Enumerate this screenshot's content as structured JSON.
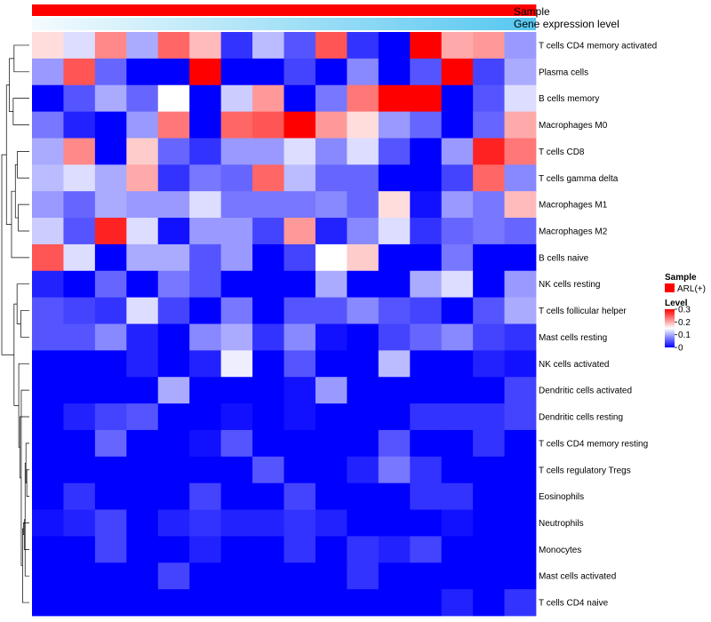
{
  "chart_data": {
    "type": "heatmap",
    "title": "",
    "row_labels": [
      "T cells CD4 memory activated",
      "Plasma cells",
      "B cells memory",
      "Macrophages M0",
      "T cells CD8",
      "T cells gamma delta",
      "Macrophages M1",
      "Macrophages M2",
      "B cells naive",
      "NK cells resting",
      "T cells follicular helper",
      "Mast cells resting",
      "NK cells activated",
      "Dendritic cells activated",
      "Dendritic cells resting",
      "T cells CD4 memory resting",
      "T cells regulatory  Tregs",
      "Eosinophils",
      "Neutrophils",
      "Monocytes",
      "Mast cells activated",
      "T cells CD4 naive"
    ],
    "n_columns": 16,
    "values": [
      [
        0.17,
        0.13,
        0.22,
        0.1,
        0.24,
        0.19,
        0.03,
        0.11,
        0.05,
        0.25,
        0.03,
        0.0,
        0.31,
        0.2,
        0.21,
        0.09
      ],
      [
        0.09,
        0.25,
        0.06,
        0.0,
        0.0,
        0.31,
        0.0,
        0.0,
        0.04,
        0.0,
        0.08,
        0.0,
        0.05,
        0.31,
        0.04,
        0.1
      ],
      [
        0.0,
        0.05,
        0.1,
        0.06,
        0.15,
        0.0,
        0.12,
        0.21,
        0.0,
        0.07,
        0.23,
        0.3,
        0.3,
        0.0,
        0.05,
        0.13
      ],
      [
        0.07,
        0.02,
        0.0,
        0.09,
        0.23,
        0.0,
        0.24,
        0.25,
        0.31,
        0.21,
        0.17,
        0.09,
        0.06,
        0.0,
        0.06,
        0.2
      ],
      [
        0.1,
        0.22,
        0.0,
        0.18,
        0.06,
        0.03,
        0.09,
        0.09,
        0.13,
        0.08,
        0.13,
        0.05,
        0.0,
        0.09,
        0.28,
        0.23
      ],
      [
        0.11,
        0.13,
        0.1,
        0.2,
        0.03,
        0.07,
        0.06,
        0.24,
        0.11,
        0.06,
        0.06,
        0.0,
        0.0,
        0.04,
        0.24,
        0.08
      ],
      [
        0.09,
        0.06,
        0.1,
        0.09,
        0.09,
        0.13,
        0.07,
        0.07,
        0.07,
        0.08,
        0.06,
        0.17,
        0.01,
        0.09,
        0.07,
        0.19
      ],
      [
        0.12,
        0.05,
        0.28,
        0.13,
        0.01,
        0.09,
        0.09,
        0.04,
        0.21,
        0.02,
        0.08,
        0.13,
        0.03,
        0.06,
        0.07,
        0.06
      ],
      [
        0.25,
        0.13,
        0.0,
        0.1,
        0.1,
        0.05,
        0.09,
        0.0,
        0.04,
        0.15,
        0.18,
        0.0,
        0.0,
        0.07,
        0.0,
        0.0
      ],
      [
        0.02,
        0.0,
        0.06,
        0.0,
        0.07,
        0.05,
        0.0,
        0.0,
        0.0,
        0.1,
        0.0,
        0.0,
        0.1,
        0.13,
        0.0,
        0.09
      ],
      [
        0.05,
        0.04,
        0.03,
        0.13,
        0.04,
        0.0,
        0.07,
        0.0,
        0.05,
        0.05,
        0.08,
        0.05,
        0.04,
        0.0,
        0.05,
        0.1
      ],
      [
        0.05,
        0.05,
        0.08,
        0.02,
        0.0,
        0.08,
        0.1,
        0.03,
        0.08,
        0.01,
        0.0,
        0.04,
        0.06,
        0.08,
        0.04,
        0.03
      ],
      [
        0.0,
        0.0,
        0.0,
        0.02,
        0.0,
        0.02,
        0.14,
        0.0,
        0.05,
        0.0,
        0.0,
        0.11,
        0.0,
        0.0,
        0.02,
        0.01
      ],
      [
        0.0,
        0.0,
        0.0,
        0.0,
        0.1,
        0.0,
        0.0,
        0.0,
        0.01,
        0.09,
        0.0,
        0.0,
        0.0,
        0.0,
        0.0,
        0.04
      ],
      [
        0.0,
        0.02,
        0.04,
        0.05,
        0.0,
        0.0,
        0.01,
        0.0,
        0.01,
        0.0,
        0.0,
        0.0,
        0.03,
        0.03,
        0.03,
        0.04
      ],
      [
        0.0,
        0.0,
        0.06,
        0.0,
        0.0,
        0.01,
        0.05,
        0.0,
        0.0,
        0.0,
        0.0,
        0.05,
        0.0,
        0.0,
        0.03,
        0.0
      ],
      [
        0.0,
        0.0,
        0.0,
        0.0,
        0.0,
        0.0,
        0.0,
        0.05,
        0.0,
        0.0,
        0.02,
        0.07,
        0.03,
        0.0,
        0.0,
        0.0
      ],
      [
        0.0,
        0.03,
        0.0,
        0.0,
        0.0,
        0.04,
        0.0,
        0.0,
        0.04,
        0.0,
        0.0,
        0.0,
        0.03,
        0.03,
        0.0,
        0.0
      ],
      [
        0.01,
        0.02,
        0.04,
        0.0,
        0.02,
        0.03,
        0.02,
        0.02,
        0.03,
        0.02,
        0.0,
        0.0,
        0.0,
        0.01,
        0.0,
        0.0
      ],
      [
        0.0,
        0.0,
        0.04,
        0.0,
        0.0,
        0.02,
        0.0,
        0.0,
        0.03,
        0.0,
        0.03,
        0.02,
        0.04,
        0.0,
        0.0,
        0.0
      ],
      [
        0.0,
        0.0,
        0.0,
        0.0,
        0.04,
        0.0,
        0.0,
        0.0,
        0.0,
        0.0,
        0.03,
        0.0,
        0.0,
        0.0,
        0.0,
        0.0
      ],
      [
        0.0,
        0.0,
        0.0,
        0.0,
        0.0,
        0.0,
        0.0,
        0.0,
        0.0,
        0.0,
        0.0,
        0.0,
        0.0,
        0.02,
        0.0,
        0.03
      ]
    ],
    "color_scale": {
      "min": 0,
      "mid": 0.15,
      "max": 0.3,
      "low": "#0000ff",
      "mid_color": "#ffffff",
      "high": "#ff0000"
    },
    "top_annotations": [
      {
        "name": "Sample",
        "color": "#ff0000"
      },
      {
        "name": "Gene expression level",
        "gradient_from": "#f4fbfe",
        "gradient_to": "#56c7f0"
      }
    ],
    "legend": {
      "sample": {
        "title": "Sample",
        "items": [
          {
            "label": "ARL(+)",
            "color": "#ff0000"
          }
        ]
      },
      "level": {
        "title": "Level",
        "ticks": [
          {
            "value": 0.3,
            "label": "0.3"
          },
          {
            "value": 0.2,
            "label": "0.2"
          },
          {
            "value": 0.1,
            "label": "0.1"
          },
          {
            "value": 0,
            "label": "0"
          }
        ]
      }
    },
    "row_dendrogram": true,
    "dendrogram_merges": [
      [
        16,
        17,
        0.6
      ],
      [
        15,
        -1,
        0.8
      ],
      [
        20,
        -2,
        1.0
      ],
      [
        19,
        -3,
        1.2
      ],
      [
        18,
        -4,
        1.4
      ],
      [
        21,
        -5,
        1.6
      ],
      [
        13,
        -6,
        1.9
      ],
      [
        14,
        -7,
        2.2
      ],
      [
        12,
        -8,
        2.5
      ],
      [
        10,
        11,
        2.0
      ],
      [
        9,
        -10,
        2.9
      ],
      [
        -9,
        -11,
        3.6
      ],
      [
        6,
        7,
        2.6
      ],
      [
        4,
        5,
        2.8
      ],
      [
        -13,
        -14,
        3.3
      ],
      [
        8,
        -15,
        4.2
      ],
      [
        0,
        1,
        3.6
      ],
      [
        2,
        3,
        3.8
      ],
      [
        -17,
        -18,
        4.7
      ],
      [
        -16,
        -19,
        5.4
      ],
      [
        -12,
        -20,
        6.5
      ]
    ]
  }
}
